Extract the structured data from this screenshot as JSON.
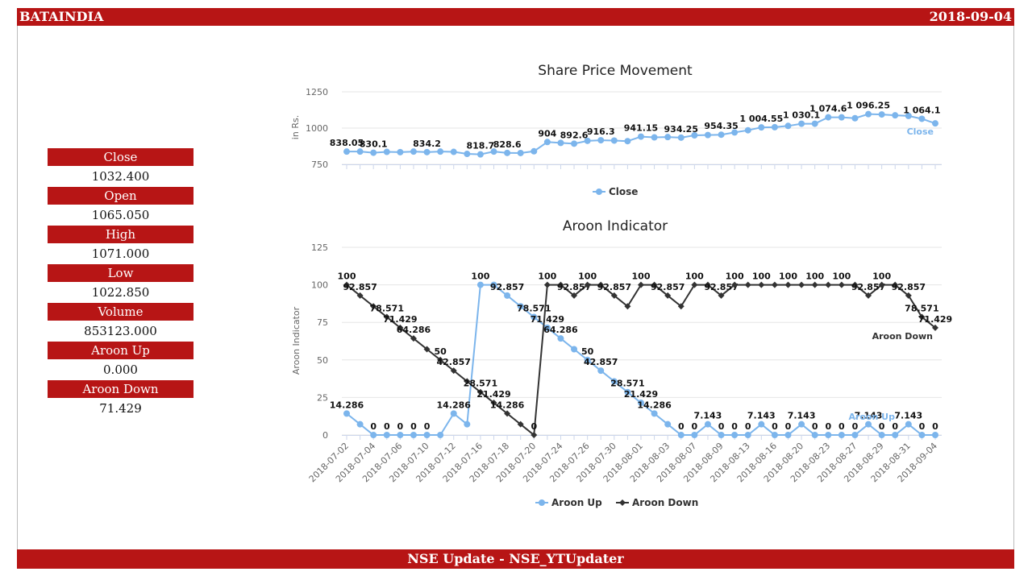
{
  "header": {
    "symbol": "BATAINDIA",
    "date": "2018-09-04"
  },
  "footer": {
    "text": "NSE Update - NSE_YTUpdater"
  },
  "stats": [
    {
      "label": "Close",
      "value": "1032.400"
    },
    {
      "label": "Open",
      "value": "1065.050"
    },
    {
      "label": "High",
      "value": "1071.000"
    },
    {
      "label": "Low",
      "value": "1022.850"
    },
    {
      "label": "Volume",
      "value": "853123.000"
    },
    {
      "label": "Aroon Up",
      "value": "0.000"
    },
    {
      "label": "Aroon Down",
      "value": "71.429"
    }
  ],
  "colors": {
    "brand": "#b71515",
    "close": "#7cb5ec",
    "aroon_up": "#7cb5ec",
    "aroon_down": "#333333"
  },
  "chart_data": [
    {
      "type": "line",
      "title": "Share Price Movement",
      "ylabel": "in Rs.",
      "ylim": [
        750,
        1250
      ],
      "yticks": [
        750,
        1000,
        1250
      ],
      "grid": true,
      "legend": "bottom-center",
      "series": [
        {
          "name": "Close",
          "end_label": "Close",
          "values": [
            838.05,
            838,
            830.1,
            836,
            834,
            838,
            834.2,
            838,
            836,
            822,
            818.7,
            838,
            828.6,
            828,
            840,
            904,
            898,
            892.6,
            912,
            916.3,
            914,
            910,
            941.15,
            936,
            938,
            934.25,
            950,
            952,
            954.35,
            970,
            985,
            1004.55,
            1006,
            1015,
            1030.1,
            1030,
            1074.6,
            1074,
            1068,
            1096.25,
            1094,
            1088,
            1084,
            1064.1,
            1032.4
          ],
          "labels": [
            "838.05",
            "",
            "830.1",
            "",
            "",
            "",
            "834.2",
            "",
            "",
            "",
            "818.7",
            "",
            "828.6",
            "",
            "",
            "904",
            "",
            "892.6",
            "",
            "916.3",
            "",
            "",
            "941.15",
            "",
            "",
            "934.25",
            "",
            "",
            "954.35",
            "",
            "",
            "1 004.55",
            "",
            "",
            "1 030.1",
            "",
            "1 074.6",
            "",
            "",
            "1 096.25",
            "",
            "",
            "",
            "1 064.1",
            ""
          ]
        }
      ]
    },
    {
      "type": "line",
      "title": "Aroon Indicator",
      "ylabel": "Aroon Indicator",
      "ylim": [
        0,
        125
      ],
      "yticks": [
        0,
        25,
        50,
        75,
        100,
        125
      ],
      "grid": true,
      "legend": "bottom-center",
      "x_tick_labels": [
        "2018-07-02",
        "2018-07-04",
        "2018-07-06",
        "2018-07-10",
        "2018-07-12",
        "2018-07-16",
        "2018-07-18",
        "2018-07-20",
        "2018-07-24",
        "2018-07-26",
        "2018-07-30",
        "2018-08-01",
        "2018-08-03",
        "2018-08-07",
        "2018-08-09",
        "2018-08-13",
        "2018-08-16",
        "2018-08-20",
        "2018-08-23",
        "2018-08-27",
        "2018-08-29",
        "2018-08-31",
        "2018-09-04"
      ],
      "series": [
        {
          "name": "Aroon Up",
          "end_label": "Aroon Up",
          "values": [
            14.286,
            7.143,
            0,
            0,
            0,
            0,
            0,
            0,
            14.286,
            7.143,
            100,
            100,
            92.857,
            85.714,
            78.571,
            71.429,
            64.286,
            57.143,
            50,
            42.857,
            35.714,
            28.571,
            21.429,
            14.286,
            7.143,
            0,
            0,
            7.143,
            0,
            0,
            0,
            7.143,
            0,
            0,
            7.143,
            0,
            0,
            0,
            0,
            7.143,
            0,
            0,
            7.143,
            0,
            0
          ],
          "labels": [
            "14.286",
            "",
            "0",
            "0",
            "0",
            "0",
            "0",
            "",
            "14.286",
            "",
            "100",
            "",
            "92.857",
            "",
            "78.571",
            "71.429",
            "64.286",
            "",
            "50",
            "42.857",
            "",
            "28.571",
            "21.429",
            "14.286",
            "",
            "0",
            "0",
            "7.143",
            "0",
            "0",
            "0",
            "7.143",
            "0",
            "0",
            "7.143",
            "0",
            "0",
            "0",
            "0",
            "7.143",
            "0",
            "0",
            "7.143",
            "0",
            "0"
          ]
        },
        {
          "name": "Aroon Down",
          "end_label": "Aroon Down",
          "values": [
            100,
            92.857,
            85.714,
            78.571,
            71.429,
            64.286,
            57.143,
            50,
            42.857,
            35.714,
            28.571,
            21.429,
            14.286,
            7.143,
            0,
            100,
            100,
            92.857,
            100,
            100,
            92.857,
            85.714,
            100,
            100,
            92.857,
            85.714,
            100,
            100,
            92.857,
            100,
            100,
            100,
            100,
            100,
            100,
            100,
            100,
            100,
            100,
            92.857,
            100,
            100,
            92.857,
            78.571,
            71.429
          ],
          "labels": [
            "100",
            "92.857",
            "",
            "78.571",
            "71.429",
            "64.286",
            "",
            "50",
            "42.857",
            "",
            "28.571",
            "21.429",
            "14.286",
            "",
            "0",
            "100",
            "",
            "92.857",
            "100",
            "",
            "92.857",
            "",
            "100",
            "",
            "92.857",
            "",
            "100",
            "",
            "92.857",
            "100",
            "",
            "100",
            "",
            "100",
            "",
            "100",
            "",
            "100",
            "",
            "92.857",
            "100",
            "",
            "92.857",
            "78.571",
            "71.429"
          ]
        }
      ]
    }
  ]
}
